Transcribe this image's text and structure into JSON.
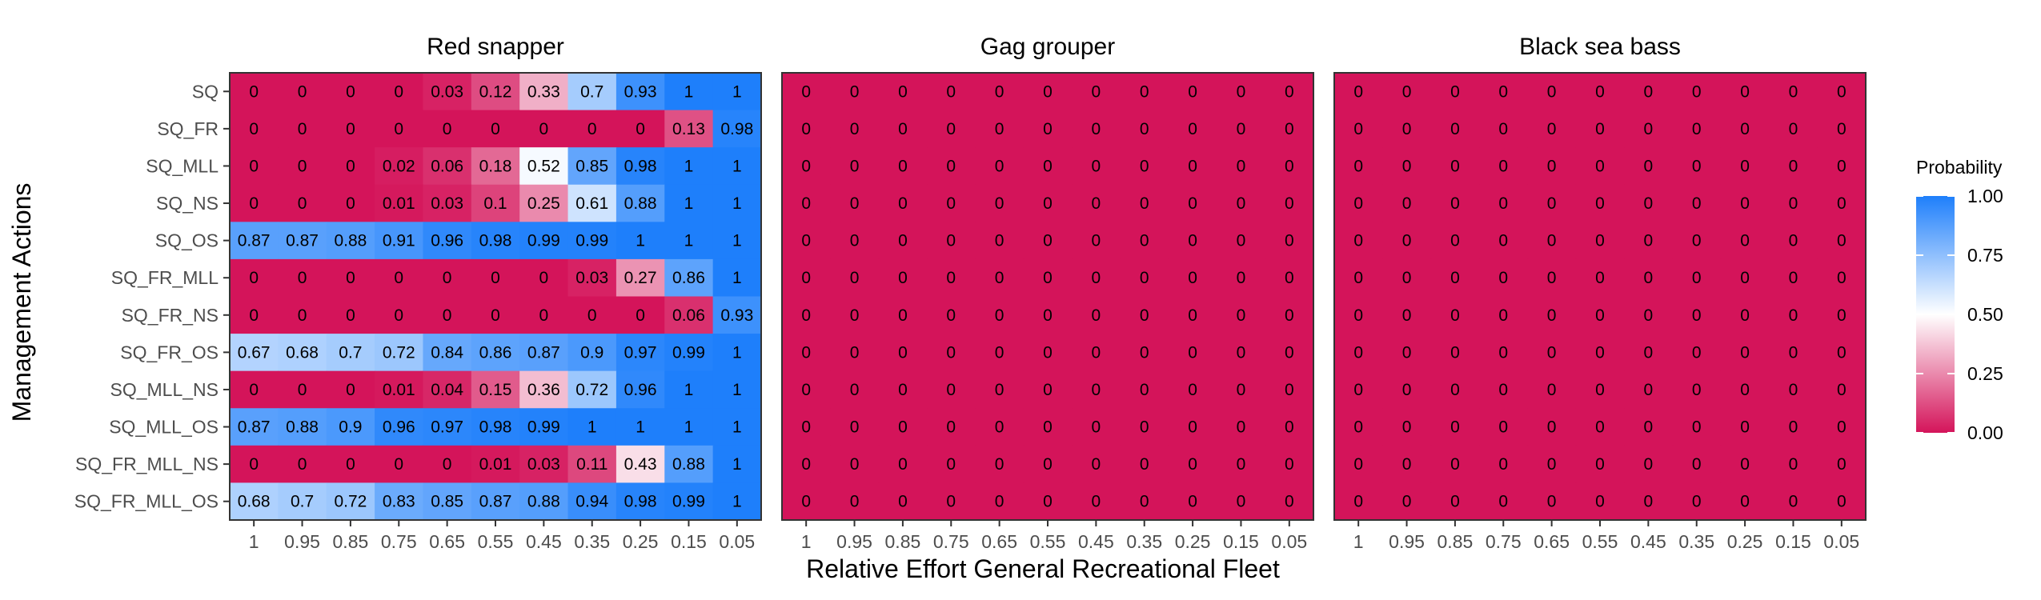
{
  "chart_data": {
    "type": "heatmap",
    "xlabel": "Relative Effort General Recreational Fleet",
    "ylabel": "Management Actions",
    "x": [
      "1",
      "0.95",
      "0.85",
      "0.75",
      "0.65",
      "0.55",
      "0.45",
      "0.35",
      "0.25",
      "0.15",
      "0.05"
    ],
    "y": [
      "SQ",
      "SQ_FR",
      "SQ_MLL",
      "SQ_NS",
      "SQ_OS",
      "SQ_FR_MLL",
      "SQ_FR_NS",
      "SQ_FR_OS",
      "SQ_MLL_NS",
      "SQ_MLL_OS",
      "SQ_FR_MLL_NS",
      "SQ_FR_MLL_OS"
    ],
    "panels": [
      {
        "title": "Red snapper",
        "values": [
          [
            0,
            0,
            0,
            0,
            0.03,
            0.12,
            0.33,
            0.7,
            0.93,
            1,
            1
          ],
          [
            0,
            0,
            0,
            0,
            0,
            0,
            0,
            0,
            0,
            0.13,
            0.98
          ],
          [
            0,
            0,
            0,
            0.02,
            0.06,
            0.18,
            0.52,
            0.85,
            0.98,
            1,
            1
          ],
          [
            0,
            0,
            0,
            0.01,
            0.03,
            0.1,
            0.25,
            0.61,
            0.88,
            1,
            1
          ],
          [
            0.87,
            0.87,
            0.88,
            0.91,
            0.96,
            0.98,
            0.99,
            0.99,
            1,
            1,
            1
          ],
          [
            0,
            0,
            0,
            0,
            0,
            0,
            0,
            0.03,
            0.27,
            0.86,
            1
          ],
          [
            0,
            0,
            0,
            0,
            0,
            0,
            0,
            0,
            0,
            0.06,
            0.93
          ],
          [
            0.67,
            0.68,
            0.7,
            0.72,
            0.84,
            0.86,
            0.87,
            0.9,
            0.97,
            0.99,
            1
          ],
          [
            0,
            0,
            0,
            0.01,
            0.04,
            0.15,
            0.36,
            0.72,
            0.96,
            1,
            1
          ],
          [
            0.87,
            0.88,
            0.9,
            0.96,
            0.97,
            0.98,
            0.99,
            1,
            1,
            1,
            1
          ],
          [
            0,
            0,
            0,
            0,
            0,
            0.01,
            0.03,
            0.11,
            0.43,
            0.88,
            1
          ],
          [
            0.68,
            0.7,
            0.72,
            0.83,
            0.85,
            0.87,
            0.88,
            0.94,
            0.98,
            0.99,
            1
          ]
        ]
      },
      {
        "title": "Gag grouper",
        "values": [
          [
            0,
            0,
            0,
            0,
            0,
            0,
            0,
            0,
            0,
            0,
            0
          ],
          [
            0,
            0,
            0,
            0,
            0,
            0,
            0,
            0,
            0,
            0,
            0
          ],
          [
            0,
            0,
            0,
            0,
            0,
            0,
            0,
            0,
            0,
            0,
            0
          ],
          [
            0,
            0,
            0,
            0,
            0,
            0,
            0,
            0,
            0,
            0,
            0
          ],
          [
            0,
            0,
            0,
            0,
            0,
            0,
            0,
            0,
            0,
            0,
            0
          ],
          [
            0,
            0,
            0,
            0,
            0,
            0,
            0,
            0,
            0,
            0,
            0
          ],
          [
            0,
            0,
            0,
            0,
            0,
            0,
            0,
            0,
            0,
            0,
            0
          ],
          [
            0,
            0,
            0,
            0,
            0,
            0,
            0,
            0,
            0,
            0,
            0
          ],
          [
            0,
            0,
            0,
            0,
            0,
            0,
            0,
            0,
            0,
            0,
            0
          ],
          [
            0,
            0,
            0,
            0,
            0,
            0,
            0,
            0,
            0,
            0,
            0
          ],
          [
            0,
            0,
            0,
            0,
            0,
            0,
            0,
            0,
            0,
            0,
            0
          ],
          [
            0,
            0,
            0,
            0,
            0,
            0,
            0,
            0,
            0,
            0,
            0
          ]
        ]
      },
      {
        "title": "Black sea bass",
        "values": [
          [
            0,
            0,
            0,
            0,
            0,
            0,
            0,
            0,
            0,
            0,
            0
          ],
          [
            0,
            0,
            0,
            0,
            0,
            0,
            0,
            0,
            0,
            0,
            0
          ],
          [
            0,
            0,
            0,
            0,
            0,
            0,
            0,
            0,
            0,
            0,
            0
          ],
          [
            0,
            0,
            0,
            0,
            0,
            0,
            0,
            0,
            0,
            0,
            0
          ],
          [
            0,
            0,
            0,
            0,
            0,
            0,
            0,
            0,
            0,
            0,
            0
          ],
          [
            0,
            0,
            0,
            0,
            0,
            0,
            0,
            0,
            0,
            0,
            0
          ],
          [
            0,
            0,
            0,
            0,
            0,
            0,
            0,
            0,
            0,
            0,
            0
          ],
          [
            0,
            0,
            0,
            0,
            0,
            0,
            0,
            0,
            0,
            0,
            0
          ],
          [
            0,
            0,
            0,
            0,
            0,
            0,
            0,
            0,
            0,
            0,
            0
          ],
          [
            0,
            0,
            0,
            0,
            0,
            0,
            0,
            0,
            0,
            0,
            0
          ],
          [
            0,
            0,
            0,
            0,
            0,
            0,
            0,
            0,
            0,
            0,
            0
          ],
          [
            0,
            0,
            0,
            0,
            0,
            0,
            0,
            0,
            0,
            0,
            0
          ]
        ]
      }
    ],
    "legend": {
      "title": "Probability",
      "ticks": [
        "1.00",
        "0.75",
        "0.50",
        "0.25",
        "0.00"
      ],
      "range": [
        0,
        1
      ],
      "placement": "right"
    },
    "colors": {
      "low": "#d4145a",
      "mid": "#ffffff",
      "high": "#1e7ffb"
    }
  }
}
